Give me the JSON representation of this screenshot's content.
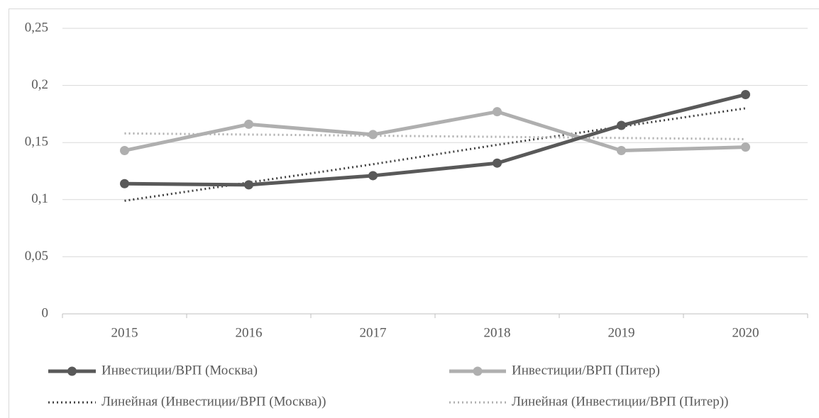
{
  "chart_data": {
    "type": "line",
    "categories": [
      "2015",
      "2016",
      "2017",
      "2018",
      "2019",
      "2020"
    ],
    "series": [
      {
        "name": "Инвестиции/ВРП (Москва)",
        "color": "#595959",
        "line_style": "solid",
        "markers": true,
        "values": [
          0.114,
          0.113,
          0.121,
          0.132,
          0.165,
          0.192
        ]
      },
      {
        "name": "Инвестиции/ВРП (Питер)",
        "color": "#afafaf",
        "line_style": "solid",
        "markers": true,
        "values": [
          0.143,
          0.166,
          0.157,
          0.177,
          0.143,
          0.146
        ]
      },
      {
        "name": "Линейная (Инвестиции/ВРП (Москва))",
        "color": "#595959",
        "line_style": "dotted",
        "markers": false,
        "values": [
          0.099,
          0.115,
          0.131,
          0.148,
          0.164,
          0.18
        ]
      },
      {
        "name": "Линейная (Инвестиции/ВРП (Питер))",
        "color": "#afafaf",
        "line_style": "dotted",
        "markers": false,
        "values": [
          0.158,
          0.157,
          0.156,
          0.155,
          0.154,
          0.153
        ]
      }
    ],
    "ylim": [
      0,
      0.25
    ],
    "yticks": [
      0,
      {
        "value": 0.05,
        "label": "0,05"
      },
      {
        "value": 0.1,
        "label": "0,1"
      },
      {
        "value": 0.15,
        "label": "0,15"
      },
      {
        "value": 0.2,
        "label": "0,2"
      },
      {
        "value": 0.25,
        "label": "0,25"
      }
    ],
    "grid": true,
    "legend": "bottom"
  }
}
